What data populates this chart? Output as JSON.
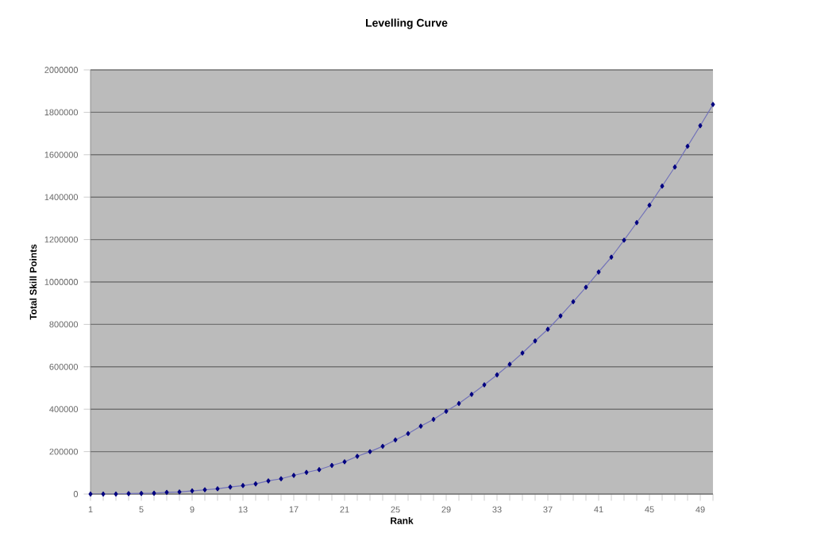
{
  "chart_data": {
    "type": "line",
    "title": "Levelling Curve",
    "xlabel": "Rank",
    "ylabel": "Total Skill Points",
    "categories": [
      "1",
      null,
      null,
      null,
      "5",
      null,
      null,
      null,
      "9",
      null,
      null,
      null,
      "13",
      null,
      null,
      null,
      "17",
      null,
      null,
      null,
      "21",
      null,
      null,
      null,
      "25",
      null,
      null,
      null,
      "29",
      null,
      null,
      null,
      "33",
      null,
      null,
      null,
      "37",
      null,
      null,
      null,
      "41",
      null,
      null,
      null,
      "45",
      null,
      null,
      null,
      "49",
      null
    ],
    "series": [
      {
        "color": "#000080",
        "values": [
          0,
          0,
          0,
          2000,
          3000,
          4000,
          8000,
          10000,
          15000,
          20000,
          25000,
          33000,
          40000,
          48000,
          62000,
          72000,
          88000,
          102000,
          115000,
          135000,
          152000,
          178000,
          200000,
          225000,
          255000,
          285000,
          320000,
          352000,
          390000,
          427000,
          470000,
          515000,
          562000,
          612000,
          665000,
          722000,
          777000,
          840000,
          907000,
          975000,
          1047000,
          1117000,
          1197000,
          1280000,
          1362000,
          1452000,
          1542000,
          1640000,
          1737000,
          1837000
        ]
      }
    ],
    "ylim": [
      0,
      2000000
    ],
    "yticks": [
      0,
      200000,
      400000,
      600000,
      800000,
      1000000,
      1200000,
      1400000,
      1600000,
      1800000,
      2000000
    ],
    "grid": "y",
    "marker": "diamond",
    "line_style": "solid"
  }
}
